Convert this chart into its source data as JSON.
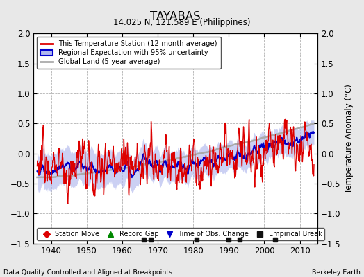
{
  "title": "TAYABAS",
  "subtitle": "14.025 N, 121.589 E (Philippines)",
  "ylabel": "Temperature Anomaly (°C)",
  "footer_left": "Data Quality Controlled and Aligned at Breakpoints",
  "footer_right": "Berkeley Earth",
  "xlim": [
    1935,
    2015
  ],
  "ylim": [
    -1.5,
    2.0
  ],
  "yticks": [
    -1.5,
    -1.0,
    -0.5,
    0.0,
    0.5,
    1.0,
    1.5,
    2.0
  ],
  "xticks": [
    1940,
    1950,
    1960,
    1970,
    1980,
    1990,
    2000,
    2010
  ],
  "bg_color": "#e8e8e8",
  "plot_bg_color": "#ffffff",
  "station_line_color": "#dd0000",
  "regional_line_color": "#0000cc",
  "regional_fill_color": "#b0b8ee",
  "global_line_color": "#aaaaaa",
  "marker_break_color": "#111111",
  "break_years": [
    1966,
    1968,
    1981,
    1990,
    1993,
    2003
  ],
  "seed": 17
}
